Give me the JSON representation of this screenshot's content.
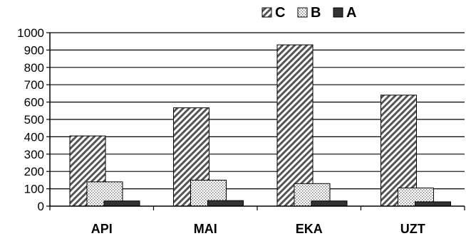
{
  "chart_data": {
    "type": "bar",
    "categories": [
      "API",
      "MAI",
      "EKA",
      "UZT"
    ],
    "series": [
      {
        "name": "C",
        "values": [
          405,
          567,
          930,
          640
        ],
        "pattern": "diagonal-hatch"
      },
      {
        "name": "B",
        "values": [
          140,
          150,
          130,
          105
        ],
        "pattern": "dots"
      },
      {
        "name": "A",
        "values": [
          30,
          32,
          30,
          25
        ],
        "pattern": "solid-dark"
      }
    ],
    "ylim": [
      0,
      1000
    ],
    "yticks": [
      0,
      100,
      200,
      300,
      400,
      500,
      600,
      700,
      800,
      900,
      1000
    ],
    "grid": true,
    "legend": "top",
    "colors": {
      "dark": "#333333",
      "hatch": "#555555",
      "dots": "#666666",
      "grid": "#000000"
    }
  }
}
